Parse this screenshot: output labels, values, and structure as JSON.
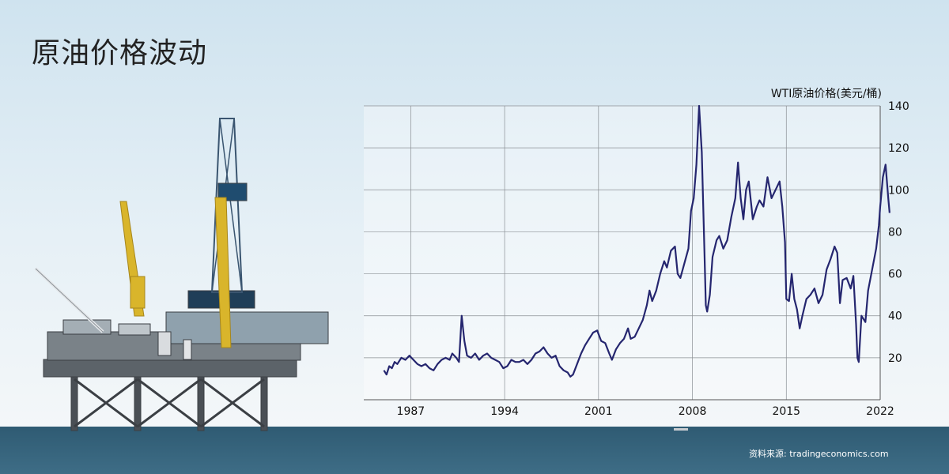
{
  "page": {
    "title": "原油价格波动",
    "source": "资料来源: tradingeconomics.com"
  },
  "chart_data": {
    "type": "line",
    "title": "",
    "xlabel": "",
    "ylabel": "WTI原油价格(美元/桶)",
    "xlim": [
      1983.5,
      2022
    ],
    "ylim": [
      0,
      140
    ],
    "x_ticks": [
      "1987",
      "1994",
      "2001",
      "2008",
      "2015",
      "2022"
    ],
    "y_ticks": [
      "20",
      "40",
      "60",
      "80",
      "100",
      "120",
      "140"
    ],
    "grid": true,
    "series": [
      {
        "color": "#25266f",
        "points": [
          [
            1985.0,
            14
          ],
          [
            1985.2,
            12
          ],
          [
            1985.4,
            16
          ],
          [
            1985.6,
            15
          ],
          [
            1985.8,
            18
          ],
          [
            1986.0,
            17
          ],
          [
            1986.3,
            20
          ],
          [
            1986.6,
            19
          ],
          [
            1986.9,
            21
          ],
          [
            1987.2,
            19
          ],
          [
            1987.5,
            17
          ],
          [
            1987.8,
            16
          ],
          [
            1988.1,
            17
          ],
          [
            1988.4,
            15
          ],
          [
            1988.7,
            14
          ],
          [
            1989.0,
            17
          ],
          [
            1989.3,
            19
          ],
          [
            1989.6,
            20
          ],
          [
            1989.9,
            19
          ],
          [
            1990.1,
            22
          ],
          [
            1990.4,
            20
          ],
          [
            1990.6,
            18
          ],
          [
            1990.8,
            40
          ],
          [
            1991.0,
            28
          ],
          [
            1991.2,
            21
          ],
          [
            1991.5,
            20
          ],
          [
            1991.8,
            22
          ],
          [
            1992.1,
            19
          ],
          [
            1992.4,
            21
          ],
          [
            1992.7,
            22
          ],
          [
            1993.0,
            20
          ],
          [
            1993.3,
            19
          ],
          [
            1993.6,
            18
          ],
          [
            1993.9,
            15
          ],
          [
            1994.2,
            16
          ],
          [
            1994.5,
            19
          ],
          [
            1994.8,
            18
          ],
          [
            1995.1,
            18
          ],
          [
            1995.4,
            19
          ],
          [
            1995.7,
            17
          ],
          [
            1996.0,
            19
          ],
          [
            1996.3,
            22
          ],
          [
            1996.6,
            23
          ],
          [
            1996.9,
            25
          ],
          [
            1997.2,
            22
          ],
          [
            1997.5,
            20
          ],
          [
            1997.8,
            21
          ],
          [
            1998.1,
            16
          ],
          [
            1998.4,
            14
          ],
          [
            1998.7,
            13
          ],
          [
            1998.9,
            11
          ],
          [
            1999.1,
            12
          ],
          [
            1999.4,
            17
          ],
          [
            1999.7,
            22
          ],
          [
            2000.0,
            26
          ],
          [
            2000.3,
            29
          ],
          [
            2000.6,
            32
          ],
          [
            2000.9,
            33
          ],
          [
            2001.2,
            28
          ],
          [
            2001.5,
            27
          ],
          [
            2001.8,
            22
          ],
          [
            2002.0,
            19
          ],
          [
            2002.3,
            24
          ],
          [
            2002.6,
            27
          ],
          [
            2002.9,
            29
          ],
          [
            2003.2,
            34
          ],
          [
            2003.4,
            29
          ],
          [
            2003.7,
            30
          ],
          [
            2004.0,
            34
          ],
          [
            2004.3,
            38
          ],
          [
            2004.6,
            45
          ],
          [
            2004.8,
            52
          ],
          [
            2005.0,
            47
          ],
          [
            2005.3,
            52
          ],
          [
            2005.6,
            60
          ],
          [
            2005.9,
            66
          ],
          [
            2006.1,
            63
          ],
          [
            2006.4,
            71
          ],
          [
            2006.7,
            73
          ],
          [
            2006.9,
            60
          ],
          [
            2007.1,
            58
          ],
          [
            2007.4,
            65
          ],
          [
            2007.7,
            72
          ],
          [
            2007.9,
            90
          ],
          [
            2008.1,
            96
          ],
          [
            2008.3,
            112
          ],
          [
            2008.5,
            140
          ],
          [
            2008.7,
            118
          ],
          [
            2008.9,
            70
          ],
          [
            2009.0,
            45
          ],
          [
            2009.1,
            42
          ],
          [
            2009.3,
            50
          ],
          [
            2009.5,
            68
          ],
          [
            2009.8,
            76
          ],
          [
            2010.0,
            78
          ],
          [
            2010.3,
            72
          ],
          [
            2010.6,
            76
          ],
          [
            2010.9,
            87
          ],
          [
            2011.2,
            96
          ],
          [
            2011.4,
            113
          ],
          [
            2011.6,
            96
          ],
          [
            2011.8,
            86
          ],
          [
            2012.0,
            100
          ],
          [
            2012.2,
            104
          ],
          [
            2012.5,
            86
          ],
          [
            2012.8,
            92
          ],
          [
            2013.0,
            95
          ],
          [
            2013.3,
            92
          ],
          [
            2013.6,
            106
          ],
          [
            2013.9,
            96
          ],
          [
            2014.2,
            100
          ],
          [
            2014.5,
            104
          ],
          [
            2014.7,
            92
          ],
          [
            2014.9,
            75
          ],
          [
            2015.0,
            48
          ],
          [
            2015.2,
            47
          ],
          [
            2015.4,
            60
          ],
          [
            2015.6,
            48
          ],
          [
            2015.8,
            43
          ],
          [
            2016.0,
            34
          ],
          [
            2016.2,
            40
          ],
          [
            2016.5,
            48
          ],
          [
            2016.8,
            50
          ],
          [
            2017.1,
            53
          ],
          [
            2017.4,
            46
          ],
          [
            2017.7,
            50
          ],
          [
            2018.0,
            62
          ],
          [
            2018.3,
            67
          ],
          [
            2018.6,
            73
          ],
          [
            2018.8,
            70
          ],
          [
            2019.0,
            46
          ],
          [
            2019.2,
            57
          ],
          [
            2019.5,
            58
          ],
          [
            2019.8,
            53
          ],
          [
            2020.0,
            59
          ],
          [
            2020.2,
            36
          ],
          [
            2020.3,
            20
          ],
          [
            2020.4,
            18
          ],
          [
            2020.6,
            40
          ],
          [
            2020.9,
            37
          ],
          [
            2021.1,
            52
          ],
          [
            2021.4,
            62
          ],
          [
            2021.7,
            72
          ],
          [
            2021.9,
            83
          ],
          [
            2022.0,
            92
          ],
          [
            2022.2,
            106
          ],
          [
            2022.4,
            112
          ],
          [
            2022.6,
            96
          ],
          [
            2022.7,
            89
          ]
        ]
      }
    ]
  }
}
